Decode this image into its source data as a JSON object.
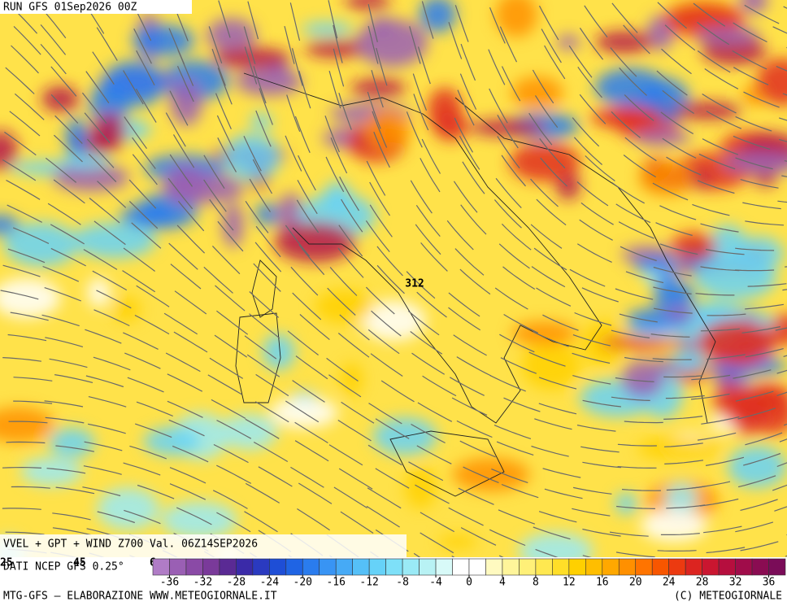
{
  "header": {
    "run": "RUN GFS 01Sep2026 00Z"
  },
  "map": {
    "contour_label": "312"
  },
  "footer": {
    "title": "VVEL + GPT + WIND Z700 Val. 06Z14SEP2026",
    "source": "DATI NCEP GFS 0.25°",
    "lon_labels": [
      "25",
      "45",
      "6"
    ],
    "credit_left": "MTG-GFS — ELABORAZIONE WWW.METEOGIORNALE.IT",
    "credit_right": "(C) METEOGIORNALE"
  },
  "colorbar": {
    "range": [
      -38,
      38
    ],
    "colors": [
      "#b07cc6",
      "#9a5fb4",
      "#8a4aa6",
      "#7a3a9a",
      "#5a2a94",
      "#3a2aa8",
      "#2a3ac0",
      "#1e4ed6",
      "#1f64e4",
      "#2a7cee",
      "#3894f4",
      "#46aaf6",
      "#55c0f8",
      "#66d2f8",
      "#7ee0f8",
      "#9aeaf6",
      "#b8f2f4",
      "#d8faf8",
      "#ffffff",
      "#ffffff",
      "#fffac0",
      "#fff59a",
      "#fff078",
      "#ffe850",
      "#ffde28",
      "#ffd000",
      "#ffbe00",
      "#ffa800",
      "#ff9000",
      "#ff7400",
      "#f85600",
      "#ec3a10",
      "#dc2420",
      "#ca1630",
      "#b60e3e",
      "#a00c4a",
      "#8a0c52",
      "#7a0c58"
    ],
    "ticks": [
      -36,
      -32,
      -28,
      -24,
      -20,
      -16,
      -12,
      -8,
      -4,
      0,
      4,
      8,
      12,
      16,
      20,
      24,
      28,
      32,
      36
    ]
  }
}
